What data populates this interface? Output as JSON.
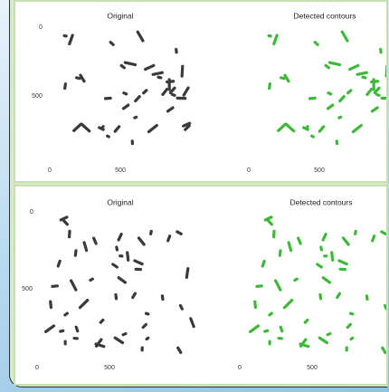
{
  "panels": [
    {
      "subplots": [
        {
          "title": "Original",
          "xticks": [
            0,
            500
          ],
          "yticks": [
            0,
            500
          ]
        },
        {
          "title": "Detected contours",
          "xticks": [
            0,
            500
          ]
        }
      ]
    },
    {
      "subplots": [
        {
          "title": "Original",
          "xticks": [
            0,
            500
          ],
          "yticks": [
            0,
            500
          ]
        },
        {
          "title": "Detected contours",
          "xticks": [
            0,
            500
          ]
        }
      ]
    }
  ]
}
